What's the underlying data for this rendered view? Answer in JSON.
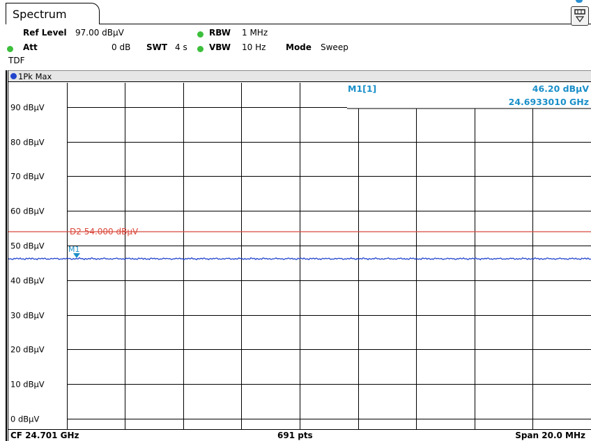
{
  "tab": {
    "title": "Spectrum"
  },
  "settings": {
    "ref_level_label": "Ref Level",
    "ref_level_value": "97.00 dBµV",
    "att_label": "Att",
    "att_value": "0 dB",
    "swt_label": "SWT",
    "swt_value": "4 s",
    "rbw_label": "RBW",
    "rbw_value": "1 MHz",
    "vbw_label": "VBW",
    "vbw_value": "10 Hz",
    "mode_label": "Mode",
    "mode_value": "Sweep",
    "tdf": "TDF"
  },
  "trace": {
    "label": "1Pk Max"
  },
  "marker_info": {
    "label": "M1[1]",
    "level": "46.20 dBµV",
    "frequency": "24.6933010 GHz"
  },
  "display_line": {
    "label": "D2",
    "value": "54.000 dBµV"
  },
  "marker": {
    "label": "M1"
  },
  "footer": {
    "center_freq": "CF 24.701 GHz",
    "points": "691 pts",
    "span": "Span 20.0 MHz"
  },
  "colors": {
    "trace": "#2244cc",
    "display_line": "#d9483b",
    "marker": "#1a8fc9",
    "grid": "#000000"
  },
  "chart_data": {
    "type": "line",
    "y_unit": "dBµV",
    "y_ticks": [
      "90 dBµV",
      "80 dBµV",
      "70 dBµV",
      "60 dBµV",
      "50 dBµV",
      "40 dBµV",
      "30 dBµV",
      "20 dBµV",
      "10 dBµV",
      "0 dBµV"
    ],
    "ylim": [
      -3,
      97
    ],
    "x_points": 691,
    "grid": true,
    "series": [
      {
        "values_level": 46.2
      }
    ],
    "display_line_level": 54.0,
    "marker_level": 46.2
  }
}
